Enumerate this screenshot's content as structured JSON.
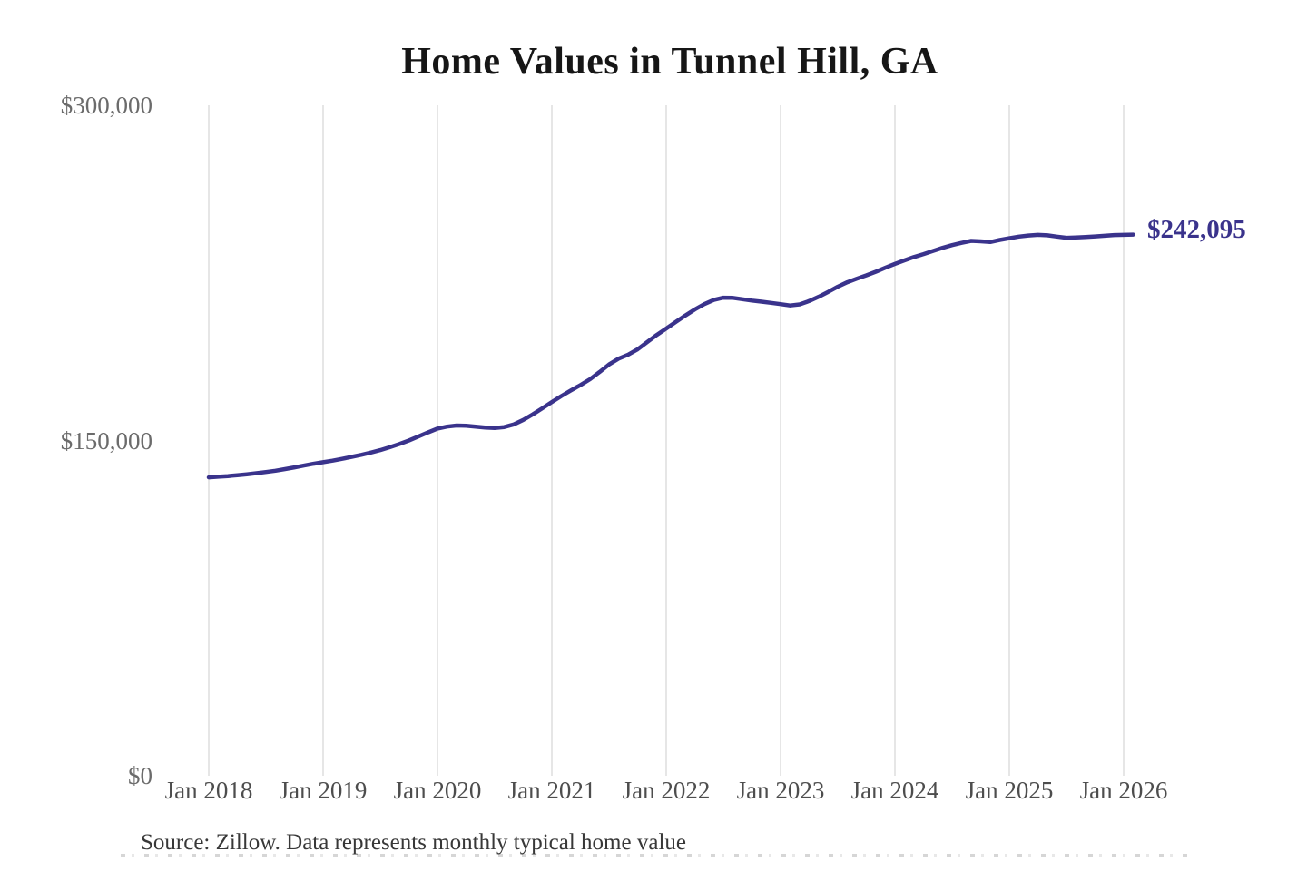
{
  "title": "Home Values in Tunnel Hill, GA",
  "value_label": "$242,095",
  "source_note": "Source: Zillow. Data represents monthly typical home value",
  "colors": {
    "line": "#3a338c",
    "end_label": "#3a338c",
    "grid": "#cccccc",
    "y_axis_text": "#6b6b6b",
    "x_axis_text": "#4d4d4d",
    "title_text": "#161616",
    "source_text": "#383838",
    "background": "#ffffff"
  },
  "chart_data": {
    "type": "line",
    "title": "Home Values in Tunnel Hill, GA",
    "series_name": "Monthly typical home value",
    "unit": "USD",
    "frequency": "monthly",
    "x_start": "2018-01",
    "x_end": "2026-02",
    "ylim": [
      0,
      300000
    ],
    "grid": "vertical-yearly",
    "legend": "none",
    "last_point_label": "$242,095",
    "last_value": 242095,
    "x_ticks": [
      "Jan 2018",
      "Jan 2019",
      "Jan 2020",
      "Jan 2021",
      "Jan 2022",
      "Jan 2023",
      "Jan 2024",
      "Jan 2025",
      "Jan 2026"
    ],
    "y_ticks": [
      {
        "label": "$300,000",
        "value": 300000
      },
      {
        "label": "$150,000",
        "value": 150000
      },
      {
        "label": "$0",
        "value": 0
      }
    ],
    "values": [
      133500,
      133800,
      134100,
      134500,
      134900,
      135400,
      135900,
      136500,
      137200,
      138000,
      138800,
      139600,
      140300,
      141000,
      141800,
      142700,
      143600,
      144600,
      145700,
      147000,
      148400,
      150000,
      151800,
      153600,
      155300,
      156200,
      156700,
      156600,
      156200,
      155800,
      155600,
      156000,
      157200,
      159200,
      161700,
      164400,
      167200,
      169900,
      172400,
      174800,
      177400,
      180600,
      184000,
      186600,
      188400,
      190800,
      194000,
      197200,
      200100,
      203000,
      205900,
      208600,
      211000,
      212900,
      213900,
      213800,
      213200,
      212600,
      212100,
      211600,
      211000,
      210400,
      210900,
      212400,
      214300,
      216500,
      218800,
      220800,
      222400,
      223900,
      225500,
      227300,
      229000,
      230600,
      232100,
      233400,
      234800,
      236200,
      237400,
      238400,
      239300,
      239100,
      238800,
      239700,
      240500,
      241200,
      241700,
      242000,
      241800,
      241200,
      240700,
      240800,
      241000,
      241300,
      241600,
      241900,
      242000,
      242095
    ]
  }
}
